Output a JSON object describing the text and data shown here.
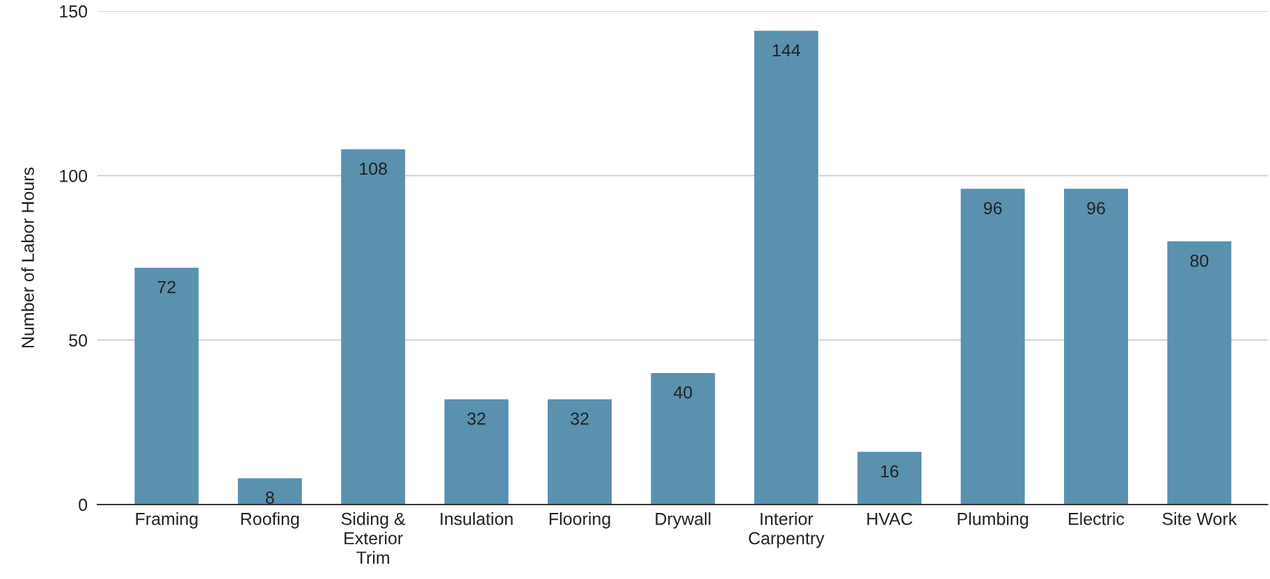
{
  "chart_data": {
    "type": "bar",
    "ylabel": "Number of Labor Hours",
    "categories": [
      "Framing",
      "Roofing",
      "Siding &\nExterior\nTrim",
      "Insulation",
      "Flooring",
      "Drywall",
      "Interior\nCarpentry",
      "HVAC",
      "Plumbing",
      "Electric",
      "Site Work"
    ],
    "values": [
      72,
      8,
      108,
      32,
      32,
      40,
      144,
      16,
      96,
      96,
      80
    ],
    "color": "#5a91af",
    "ylim": [
      0,
      150
    ],
    "yticks": [
      0,
      50,
      100,
      150
    ],
    "grid": "y",
    "data_labels": true,
    "legend": false
  }
}
